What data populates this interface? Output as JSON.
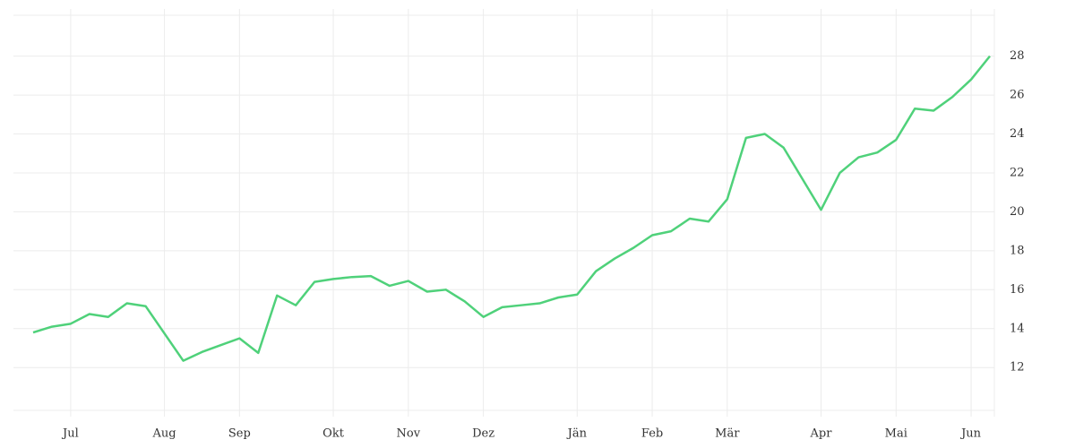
{
  "chart_data": {
    "type": "line",
    "categories": [
      null,
      null,
      "Jul",
      null,
      null,
      null,
      null,
      "Aug",
      null,
      null,
      null,
      "Sep",
      null,
      null,
      null,
      null,
      "Okt",
      null,
      null,
      null,
      "Nov",
      null,
      null,
      null,
      "Dez",
      null,
      null,
      null,
      null,
      "Jän",
      null,
      null,
      null,
      "Feb",
      null,
      null,
      null,
      "Mär",
      null,
      null,
      null,
      null,
      "Apr",
      null,
      null,
      null,
      "Mai",
      null,
      null,
      null,
      "Jun",
      null
    ],
    "series": [
      {
        "color": "#4fd17a",
        "values": [
          13.8,
          14.1,
          14.25,
          14.75,
          14.6,
          15.3,
          15.15,
          13.75,
          12.35,
          12.8,
          13.15,
          13.5,
          12.75,
          15.7,
          15.2,
          16.4,
          16.55,
          16.65,
          16.7,
          16.2,
          16.45,
          15.9,
          16.0,
          15.4,
          14.6,
          15.1,
          15.2,
          15.3,
          15.6,
          15.75,
          16.95,
          17.6,
          18.15,
          18.8,
          19.0,
          19.65,
          19.5,
          20.65,
          23.8,
          24.0,
          23.3,
          21.7,
          20.1,
          22.0,
          22.8,
          23.05,
          23.7,
          25.3,
          25.2,
          25.9,
          26.8,
          28.0
        ]
      }
    ],
    "ylim": [
      9.8,
      30.1
    ],
    "yticks": [
      12,
      14,
      16,
      18,
      20,
      22,
      24,
      26,
      28
    ],
    "grid": true
  }
}
